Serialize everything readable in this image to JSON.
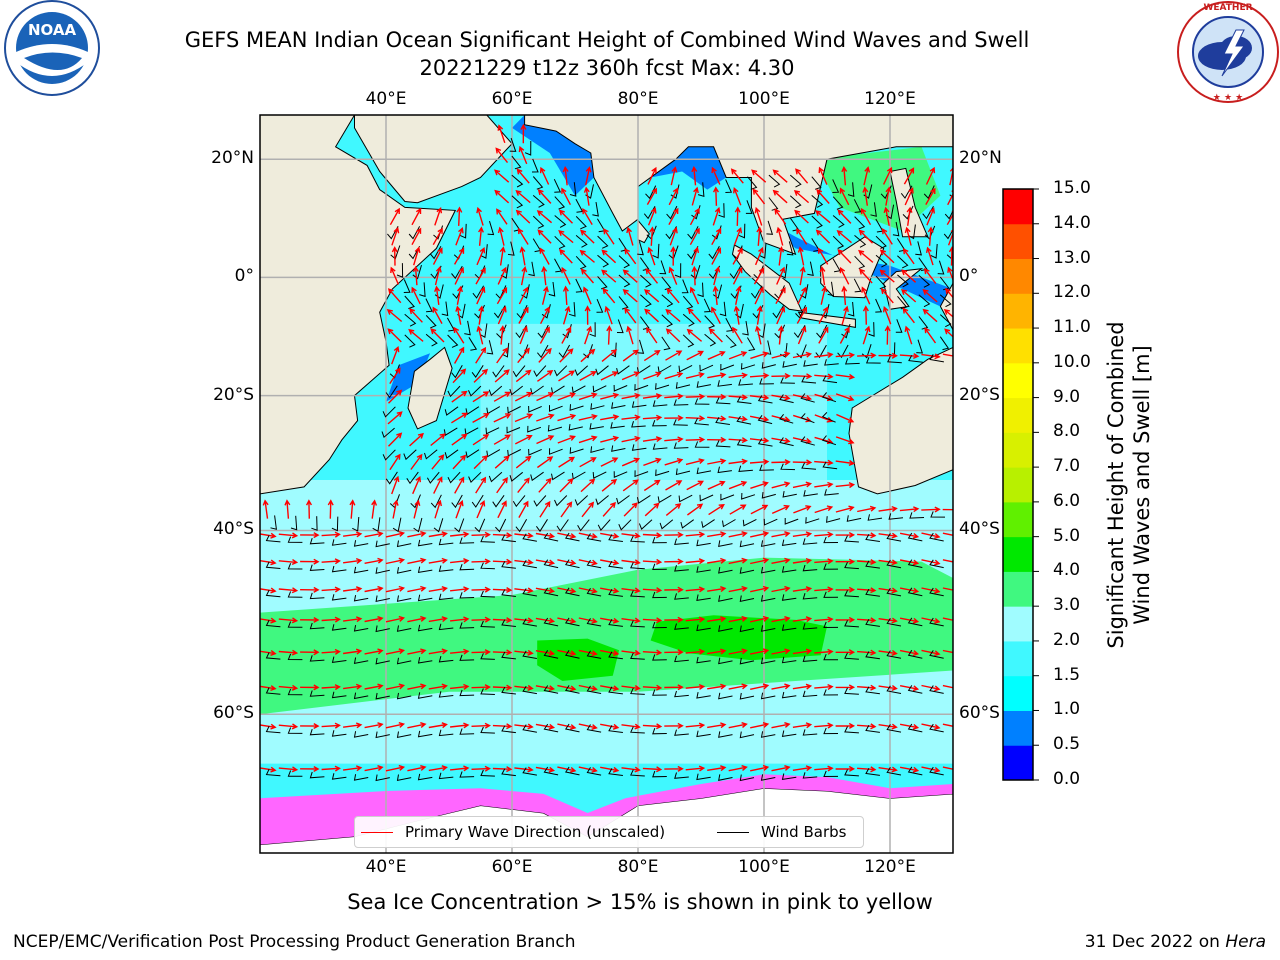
{
  "header": {
    "title_line1": "GEFS MEAN Indian Ocean Significant Height of Combined Wind Waves and Swell",
    "title_line2": "20221229 t12z 360h fcst   Max: 4.30"
  },
  "logos": {
    "left": {
      "name": "noaa-logo",
      "text": "NOAA",
      "ring_text": "NATIONAL OCEANIC AND ATMOSPHERIC ADMINISTRATION · U.S. DEPARTMENT OF COMMERCE"
    },
    "right": {
      "name": "nws-logo",
      "ring_text": "NATIONAL WEATHER SERVICE"
    }
  },
  "map": {
    "lon_ticks": [
      "40°E",
      "60°E",
      "80°E",
      "100°E",
      "120°E"
    ],
    "lat_ticks": [
      "20°N",
      "0°",
      "20°S",
      "40°S",
      "60°S"
    ],
    "lon_range": [
      20,
      130
    ],
    "lat_range": [
      -70,
      27
    ],
    "grid": true,
    "colors": {
      "land": "#efecdc",
      "antarctic_ice_land": "#ffffff",
      "sea_ice": "#ff66ff",
      "wind_barb": "#000000",
      "wave_arrow": "#ff0000"
    }
  },
  "legend": {
    "items": [
      {
        "label": "Primary Wave Direction (unscaled)",
        "color": "#ff0000"
      },
      {
        "label": "Wind Barbs",
        "color": "#000000"
      }
    ],
    "placement": "lower-center"
  },
  "colorbar": {
    "title_line1": "Significant Height of Combined",
    "title_line2": "Wind Waves and Swell [m]",
    "levels": [
      "0.0",
      "0.5",
      "1.0",
      "1.5",
      "2.0",
      "3.0",
      "4.0",
      "5.0",
      "6.0",
      "7.0",
      "8.0",
      "9.0",
      "10.0",
      "11.0",
      "12.0",
      "13.0",
      "14.0",
      "15.0"
    ],
    "colors": [
      "#0000ff",
      "#0080ff",
      "#00ffff",
      "#40f8ff",
      "#a0fcff",
      "#40f880",
      "#00e800",
      "#60f000",
      "#b8f000",
      "#d8f000",
      "#f0f000",
      "#ffff00",
      "#ffe000",
      "#ffb400",
      "#ff8800",
      "#ff5000",
      "#ff0000"
    ]
  },
  "notes": {
    "sea_ice": "Sea Ice Concentration > 15% is shown in pink to yellow"
  },
  "footer": {
    "left": "NCEP/EMC/Verification Post Processing Product Generation Branch",
    "date": "31 Dec 2022 on",
    "machine": "Hera"
  }
}
